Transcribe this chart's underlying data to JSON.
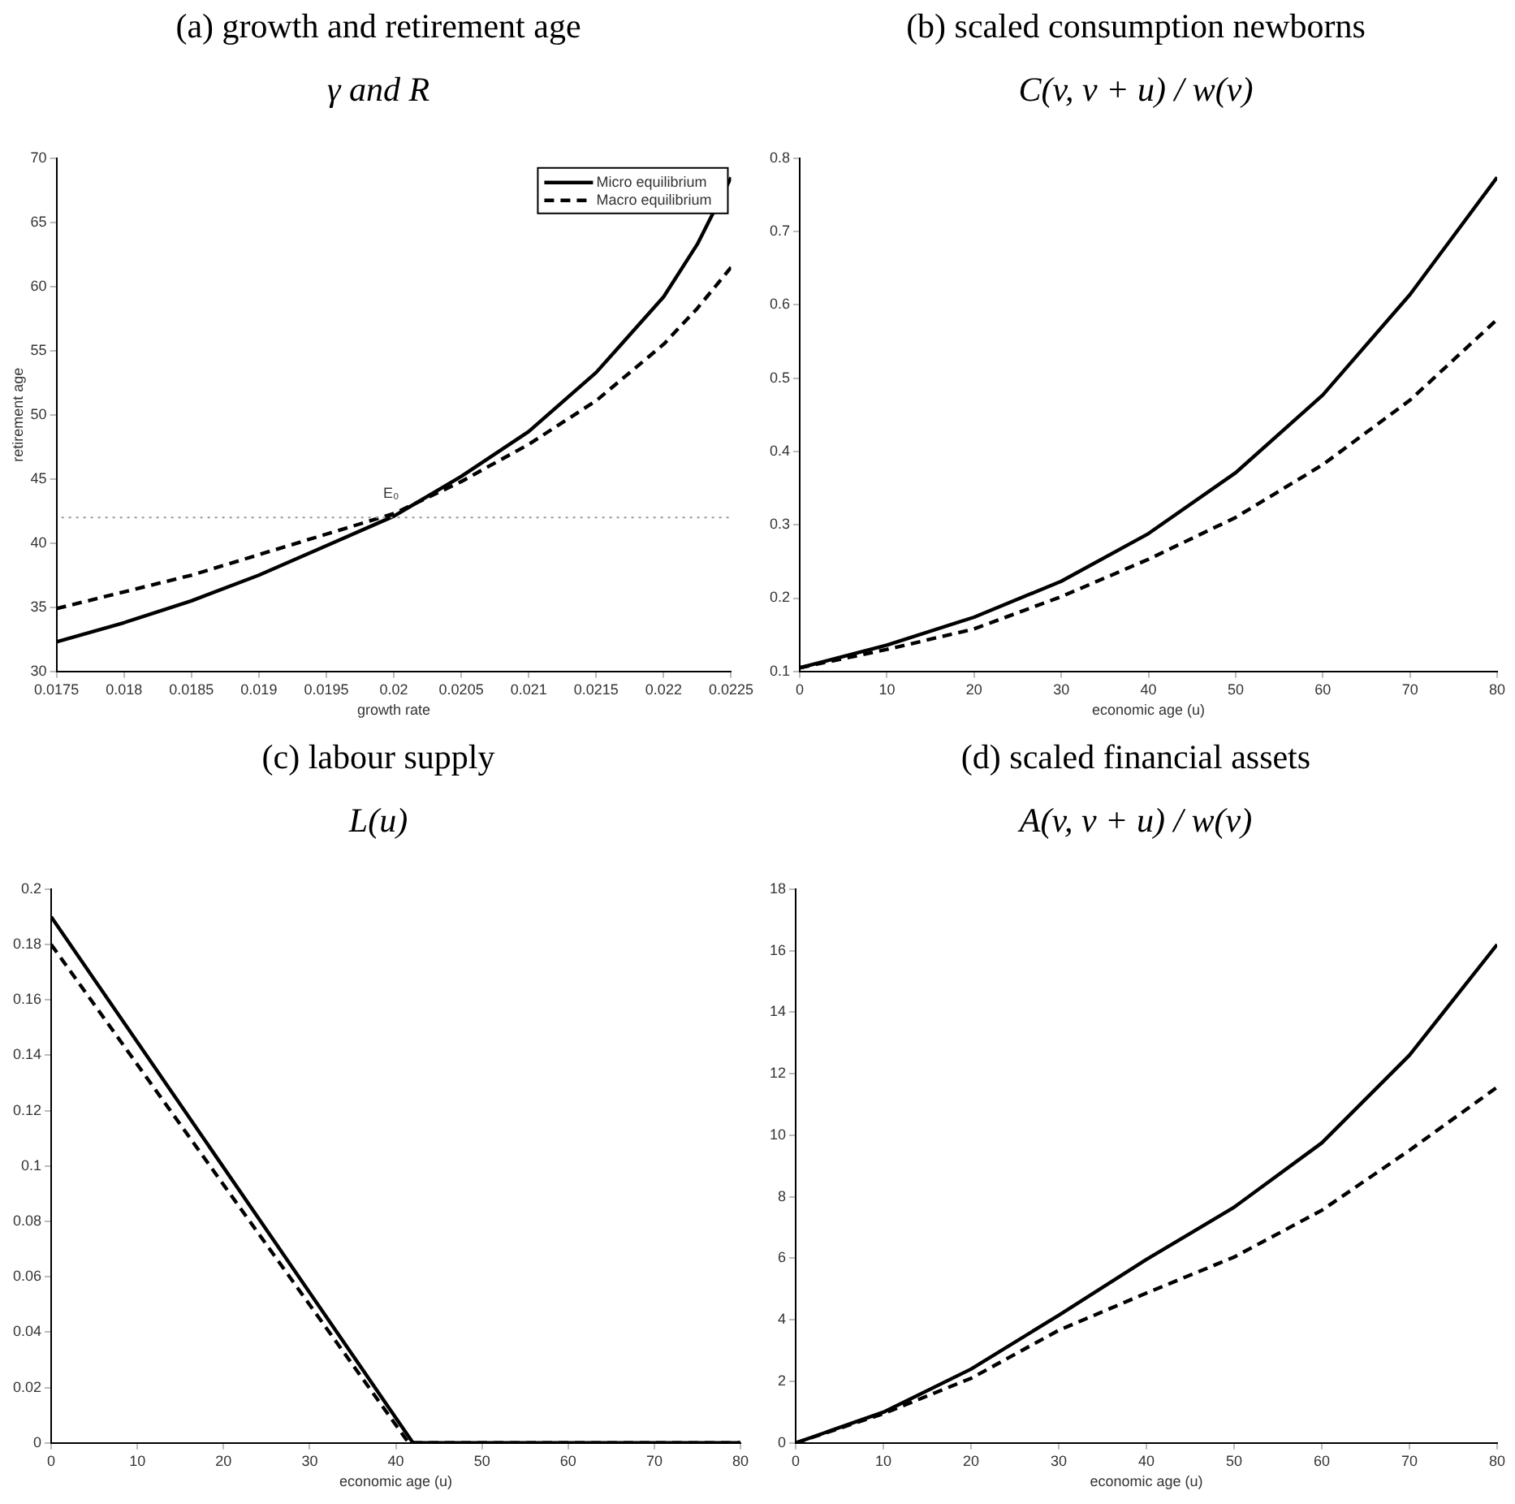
{
  "chart_data": [
    {
      "type": "line",
      "title": "(a) growth and retirement age",
      "subtitle": "γ and R",
      "xlabel": "growth rate",
      "ylabel": "retirement age",
      "x": [
        0.0175,
        0.018,
        0.0185,
        0.019,
        0.0195,
        0.02,
        0.0205,
        0.021,
        0.0215,
        0.022,
        0.02225,
        0.0225
      ],
      "series": [
        {
          "name": "Micro equilibrium",
          "color": "#000000",
          "line_style": "solid",
          "values": [
            32.3,
            33.8,
            35.5,
            37.5,
            39.8,
            42.1,
            45.2,
            48.7,
            53.3,
            59.2,
            63.3,
            68.5
          ]
        },
        {
          "name": "Macro equilibrium",
          "color": "#000000",
          "line_style": "dashed",
          "values": [
            34.9,
            36.2,
            37.5,
            39.1,
            40.7,
            42.3,
            44.8,
            47.7,
            51.1,
            55.5,
            58.3,
            61.5
          ]
        }
      ],
      "xlim": [
        0.0175,
        0.0225
      ],
      "xticks": [
        0.0175,
        0.018,
        0.0185,
        0.019,
        0.0195,
        0.02,
        0.0205,
        0.021,
        0.0215,
        0.022,
        0.0225
      ],
      "ylim": [
        30,
        70
      ],
      "yticks": [
        30,
        35,
        40,
        45,
        50,
        55,
        60,
        65,
        70
      ],
      "ref_lines": [
        {
          "axis": "y",
          "value": 42,
          "color": "#999999",
          "line_style": "dotted"
        }
      ],
      "annotations": [
        {
          "text": "E₀",
          "x": 0.0201,
          "y": 42
        }
      ],
      "legend": "top right"
    },
    {
      "type": "line",
      "title": "(b) scaled consumption newborns",
      "subtitle": "C(v, v + u) / w(v)",
      "xlabel": "economic age (u)",
      "x": [
        0,
        10,
        20,
        30,
        40,
        50,
        60,
        70,
        80
      ],
      "series": [
        {
          "color": "#000000",
          "line_style": "solid",
          "values": [
            0.105,
            0.136,
            0.174,
            0.223,
            0.288,
            0.371,
            0.477,
            0.614,
            0.774
          ]
        },
        {
          "color": "#000000",
          "line_style": "dashed",
          "values": [
            0.105,
            0.13,
            0.158,
            0.202,
            0.253,
            0.31,
            0.382,
            0.47,
            0.58
          ]
        }
      ],
      "xlim": [
        0,
        80
      ],
      "xticks": [
        0,
        10,
        20,
        30,
        40,
        50,
        60,
        70,
        80
      ],
      "ylim": [
        0.1,
        0.8
      ],
      "yticks": [
        0.1,
        0.2,
        0.3,
        0.4,
        0.5,
        0.6,
        0.7,
        0.8
      ]
    },
    {
      "type": "line",
      "title": "(c) labour supply",
      "subtitle": "L(u)",
      "xlabel": "economic age (u)",
      "series": [
        {
          "color": "#000000",
          "line_style": "solid",
          "x": [
            0,
            42,
            80
          ],
          "values": [
            0.19,
            0,
            0
          ]
        },
        {
          "color": "#000000",
          "line_style": "dashed",
          "x": [
            0,
            41.5,
            80
          ],
          "values": [
            0.18,
            0,
            0
          ]
        }
      ],
      "xlim": [
        0,
        80
      ],
      "xticks": [
        0,
        10,
        20,
        30,
        40,
        50,
        60,
        70,
        80
      ],
      "ylim": [
        0,
        0.2
      ],
      "yticks": [
        0,
        0.02,
        0.04,
        0.06,
        0.08,
        0.1,
        0.12,
        0.14,
        0.16,
        0.18,
        0.2
      ]
    },
    {
      "type": "line",
      "title": "(d) scaled financial assets",
      "subtitle": "A(v, v + u) / w(v)",
      "xlabel": "economic age (u)",
      "x": [
        0,
        10,
        20,
        30,
        40,
        50,
        60,
        70,
        80
      ],
      "series": [
        {
          "color": "#000000",
          "line_style": "solid",
          "values": [
            0,
            1.0,
            2.4,
            4.15,
            5.96,
            7.66,
            9.75,
            12.6,
            16.2
          ]
        },
        {
          "color": "#000000",
          "line_style": "dashed",
          "values": [
            0,
            0.95,
            2.1,
            3.66,
            4.87,
            6.04,
            7.56,
            9.51,
            11.56
          ]
        }
      ],
      "xlim": [
        0,
        80
      ],
      "xticks": [
        0,
        10,
        20,
        30,
        40,
        50,
        60,
        70,
        80
      ],
      "ylim": [
        0,
        18
      ],
      "yticks": [
        0,
        2,
        4,
        6,
        8,
        10,
        12,
        14,
        16,
        18
      ]
    }
  ]
}
